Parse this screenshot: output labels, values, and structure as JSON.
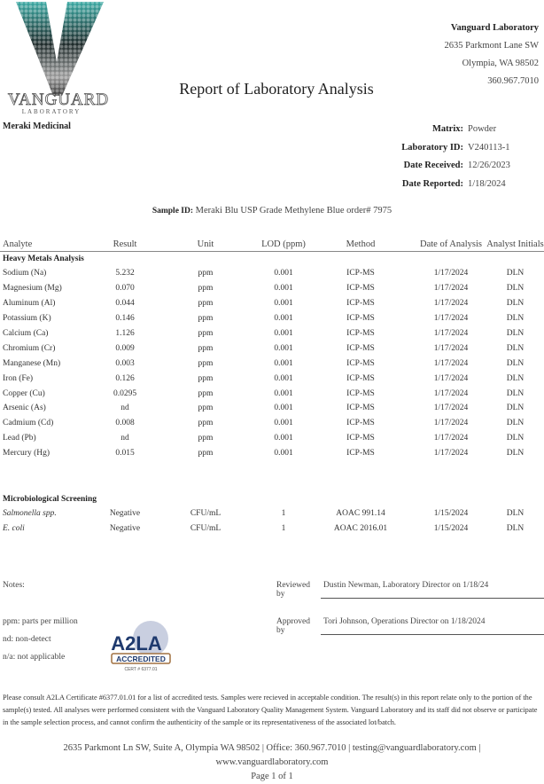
{
  "logo": {
    "text": "VANGUARD",
    "sub": "LABORATORY",
    "colors": {
      "teal": "#3aa9a3",
      "gray": "#888888"
    }
  },
  "lab": {
    "name": "Vanguard Laboratory",
    "address1": "2635 Parkmont Lane SW",
    "address2": "Olympia, WA 98502",
    "phone": "360.967.7010"
  },
  "title": "Report of Laboratory Analysis",
  "client": "Meraki Medicinal",
  "meta": [
    {
      "label": "Matrix:",
      "value": "Powder"
    },
    {
      "label": "Laboratory ID:",
      "value": "V240113-1"
    },
    {
      "label": "Date Received:",
      "value": "12/26/2023"
    },
    {
      "label": "Date Reported:",
      "value": "1/18/2024"
    }
  ],
  "sample": {
    "label": "Sample ID:",
    "value": "Meraki Blu USP Grade Methylene Blue order# 7975"
  },
  "table": {
    "headers": [
      "Analyte",
      "Result",
      "Unit",
      "LOD (ppm)",
      "Method",
      "Date of Analysis",
      "Analyst Initials"
    ],
    "heavy_title": "Heavy Metals Analysis",
    "heavy": [
      [
        "Sodium (Na)",
        "5.232",
        "ppm",
        "0.001",
        "ICP-MS",
        "1/17/2024",
        "DLN"
      ],
      [
        "Magnesium (Mg)",
        "0.070",
        "ppm",
        "0.001",
        "ICP-MS",
        "1/17/2024",
        "DLN"
      ],
      [
        "Aluminum (Al)",
        "0.044",
        "ppm",
        "0.001",
        "ICP-MS",
        "1/17/2024",
        "DLN"
      ],
      [
        "Potassium (K)",
        "0.146",
        "ppm",
        "0.001",
        "ICP-MS",
        "1/17/2024",
        "DLN"
      ],
      [
        "Calcium (Ca)",
        "1.126",
        "ppm",
        "0.001",
        "ICP-MS",
        "1/17/2024",
        "DLN"
      ],
      [
        "Chromium (Cr)",
        "0.009",
        "ppm",
        "0.001",
        "ICP-MS",
        "1/17/2024",
        "DLN"
      ],
      [
        "Manganese (Mn)",
        "0.003",
        "ppm",
        "0.001",
        "ICP-MS",
        "1/17/2024",
        "DLN"
      ],
      [
        "Iron (Fe)",
        "0.126",
        "ppm",
        "0.001",
        "ICP-MS",
        "1/17/2024",
        "DLN"
      ],
      [
        "Copper (Cu)",
        "0.0295",
        "ppm",
        "0.001",
        "ICP-MS",
        "1/17/2024",
        "DLN"
      ],
      [
        "Arsenic (As)",
        "nd",
        "ppm",
        "0.001",
        "ICP-MS",
        "1/17/2024",
        "DLN"
      ],
      [
        "Cadmium (Cd)",
        "0.008",
        "ppm",
        "0.001",
        "ICP-MS",
        "1/17/2024",
        "DLN"
      ],
      [
        "Lead (Pb)",
        "nd",
        "ppm",
        "0.001",
        "ICP-MS",
        "1/17/2024",
        "DLN"
      ],
      [
        "Mercury (Hg)",
        "0.015",
        "ppm",
        "0.001",
        "ICP-MS",
        "1/17/2024",
        "DLN"
      ]
    ],
    "micro_title": "Microbiological Screening",
    "micro": [
      [
        "Salmonella spp.",
        "Negative",
        "CFU/mL",
        "1",
        "AOAC 991.14",
        "1/15/2024",
        "DLN"
      ],
      [
        "E. coli",
        "Negative",
        "CFU/mL",
        "1",
        "AOAC 2016.01",
        "1/15/2024",
        "DLN"
      ]
    ]
  },
  "notes": {
    "label": "Notes:",
    "defs": [
      "ppm: parts per million",
      "nd: non-detect",
      "n/a: not applicable"
    ]
  },
  "reviewed": {
    "label": "Reviewed by",
    "value": "Dustin Newman, Laboratory Director on 1/18/24"
  },
  "approved": {
    "label": "Approved by",
    "value": "Tori Johnson, Operations Director on 1/18/2024"
  },
  "a2la": {
    "text": "A2LA",
    "badge": "ACCREDITED",
    "cert": "CERT # 6377.01"
  },
  "disclaimer": "Please consult A2LA Certificate #6377.01.01 for a list of accredited tests. Samples were recieved in acceptable condition. The result(s) in this report relate only to the portion of the sample(s) tested. All analyses were performed consistent with the Vanguard Laboratory Quality Management System. Vanguard Laboratory and its staff did not observe or participate in the sample selection process, and cannot confirm the authenticity of the sample or its representativeness of the associated lot/batch.",
  "footer": {
    "line1": "2635 Parkmont Ln SW, Suite A, Olympia WA 98502 | Office: 360.967.7010 | testing@vanguardlaboratory.com |",
    "line2": "www.vanguardlaboratory.com",
    "line3": "Page 1 of 1"
  }
}
